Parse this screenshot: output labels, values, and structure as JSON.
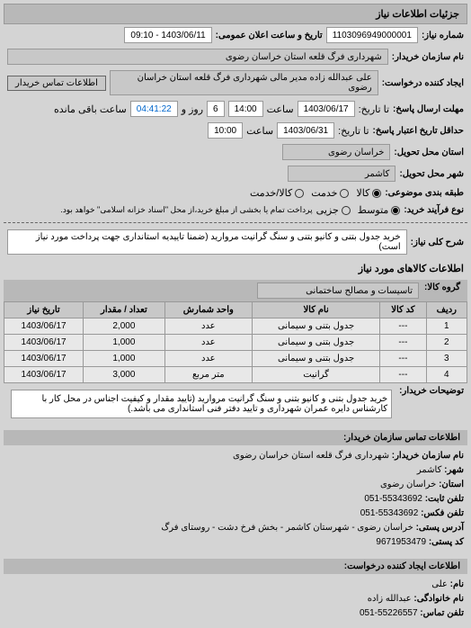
{
  "header": "جزئیات اطلاعات نیاز",
  "request_number": {
    "label": "شماره نیاز:",
    "value": "1103096949000001"
  },
  "announce_datetime": {
    "label": "تاریخ و ساعت اعلان عمومی:",
    "value": "1403/06/11 - 09:10"
  },
  "buyer_name": {
    "label": "نام سازمان خریدار:",
    "value": "شهرداری فرگ قلعه استان خراسان رضوی"
  },
  "request_creator": {
    "label": "ایجاد کننده درخواست:",
    "value": "علی عبدالله زاده مدیر مالی شهرداری فرگ قلعه استان خراسان رضوی"
  },
  "buyer_contact_btn": "اطلاعات تماس خریدار",
  "response_deadline": {
    "label": "مهلت ارسال پاسخ:",
    "to": "تا تاریخ:",
    "date": "1403/06/17",
    "time_label": "ساعت",
    "time": "14:00",
    "days": "6",
    "days_label": "روز و",
    "remain": "04:41:22",
    "remain_label": "ساعت باقی مانده"
  },
  "validity": {
    "label": "حداقل تاریخ اعتبار پاسخ:",
    "to": "تا تاریخ:",
    "date": "1403/06/31",
    "time_label": "ساعت",
    "time": "10:00"
  },
  "location_province": {
    "label": "استان محل تحویل:",
    "value": "خراسان رضوی"
  },
  "location_city": {
    "label": "شهر محل تحویل:",
    "value": "کاشمر"
  },
  "budget_class": {
    "label": "طبقه بندی موضوعی:",
    "options": [
      "کالا",
      "خدمت",
      "کالا/خدمت"
    ],
    "selected": 0
  },
  "process_type": {
    "label": "نوع فرآیند خرید:",
    "options": [
      "متوسط",
      "جزیی"
    ],
    "selected": 0,
    "note": "پرداخت تمام یا بخشی از مبلغ خرید،از محل \"اسناد خزانه اسلامی\" خواهد بود."
  },
  "need_title": {
    "label": "شرح کلی نیاز:",
    "value": "خرید جدول بتنی و کانیو بتنی و سنگ گرانیت مروارید (ضمنا تاییدیه استانداری جهت پرداخت مورد نیاز است)"
  },
  "goods_section": "اطلاعات کالاهای مورد نیاز",
  "goods_group": {
    "label": "گروه کالا:",
    "value": "تاسیسات و مصالح ساختمانی"
  },
  "table": {
    "headers": [
      "ردیف",
      "کد کالا",
      "نام کالا",
      "واحد شمارش",
      "تعداد / مقدار",
      "تاریخ نیاز"
    ],
    "rows": [
      [
        "1",
        "---",
        "جدول بتنی و سیمانی",
        "عدد",
        "2,000",
        "1403/06/17"
      ],
      [
        "2",
        "---",
        "جدول بتنی و سیمانی",
        "عدد",
        "1,000",
        "1403/06/17"
      ],
      [
        "3",
        "---",
        "جدول بتنی و سیمانی",
        "عدد",
        "1,000",
        "1403/06/17"
      ],
      [
        "4",
        "---",
        "گرانیت",
        "متر مربع",
        "3,000",
        "1403/06/17"
      ]
    ]
  },
  "buyer_desc": {
    "label": "توضیحات خریدار:",
    "value": "خرید جدول بتنی و کانیو بتنی و سنگ گرانیت مروارید (تایید مقدار و کیفیت اجناس در محل کار با کارشناس دایره عمران شهرداری و تایید دفتر فنی استانداری می باشد.)"
  },
  "contact_header": "اطلاعات تماس سازمان خریدار:",
  "contact": {
    "org": {
      "label": "نام سازمان خریدار:",
      "value": "شهرداری فرگ قلعه استان خراسان رضوی"
    },
    "city": {
      "label": "شهر:",
      "value": "کاشمر"
    },
    "province": {
      "label": "استان:",
      "value": "خراسان رضوی"
    },
    "phone": {
      "label": "تلفن ثابت:",
      "value": "55343692-051"
    },
    "fax": {
      "label": "تلفن فکس:",
      "value": "55343692-051"
    },
    "address": {
      "label": "آدرس پستی:",
      "value": "خراسان رضوی - شهرستان کاشمر - بخش فرخ دشت - روستای فرگ"
    },
    "postal": {
      "label": "کد پستی:",
      "value": "9671953479"
    }
  },
  "creator_header": "اطلاعات ایجاد کننده درخواست:",
  "creator": {
    "name": {
      "label": "نام:",
      "value": "علی"
    },
    "family": {
      "label": "نام خانوادگی:",
      "value": "عبدالله زاده"
    },
    "phone": {
      "label": "تلفن تماس:",
      "value": "55226557-051"
    }
  }
}
